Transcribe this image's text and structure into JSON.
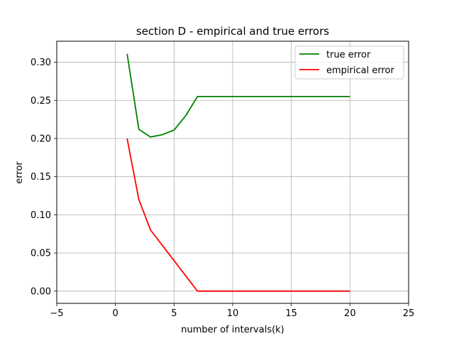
{
  "chart_data": {
    "type": "line",
    "title": "section D - empirical and true errors",
    "xlabel": "number of intervals(k)",
    "ylabel": "error",
    "xlim": [
      -5,
      25
    ],
    "ylim": [
      -0.016,
      0.3275
    ],
    "xticks": [
      -5,
      0,
      5,
      10,
      15,
      20,
      25
    ],
    "xtick_labels": [
      "−5",
      "0",
      "5",
      "10",
      "15",
      "20",
      "25"
    ],
    "yticks": [
      0.0,
      0.05,
      0.1,
      0.15,
      0.2,
      0.25,
      0.3
    ],
    "ytick_labels": [
      "0.00",
      "0.05",
      "0.10",
      "0.15",
      "0.20",
      "0.25",
      "0.30"
    ],
    "grid": true,
    "legend_position": "upper right",
    "series": [
      {
        "name": "true error",
        "color": "#008000",
        "x": [
          1,
          2,
          3,
          4,
          5,
          6,
          7,
          8,
          9,
          10,
          11,
          12,
          13,
          14,
          15,
          16,
          17,
          18,
          19,
          20
        ],
        "y": [
          0.311,
          0.212,
          0.202,
          0.205,
          0.211,
          0.23,
          0.255,
          0.255,
          0.255,
          0.255,
          0.255,
          0.255,
          0.255,
          0.255,
          0.255,
          0.255,
          0.255,
          0.255,
          0.255,
          0.255
        ]
      },
      {
        "name": "empirical error",
        "color": "#ff0000",
        "x": [
          1,
          2,
          3,
          4,
          5,
          6,
          7,
          8,
          9,
          10,
          11,
          12,
          13,
          14,
          15,
          16,
          17,
          18,
          19,
          20
        ],
        "y": [
          0.2,
          0.12,
          0.08,
          0.06,
          0.04,
          0.02,
          0.0,
          0.0,
          0.0,
          0.0,
          0.0,
          0.0,
          0.0,
          0.0,
          0.0,
          0.0,
          0.0,
          0.0,
          0.0,
          0.0
        ]
      }
    ]
  }
}
